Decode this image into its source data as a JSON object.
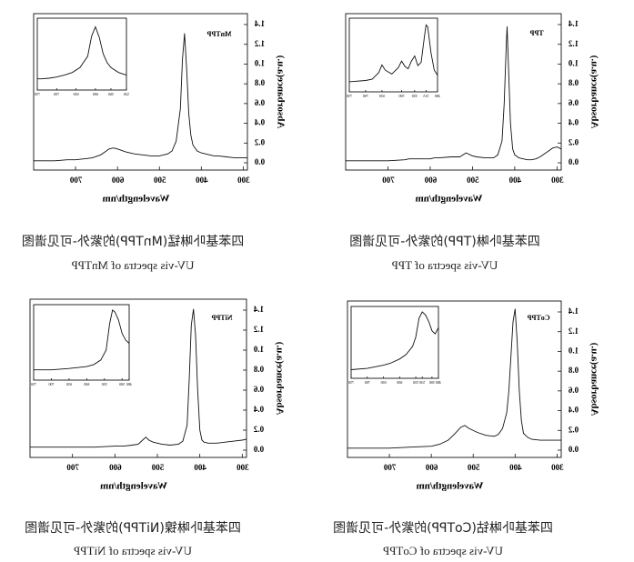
{
  "chart_data": [
    {
      "type": "line",
      "id": "mntpp",
      "label": "MnTPP",
      "xlabel": "Wavelength/nm",
      "ylabel": "Absorbance(a.u.)",
      "xlim": [
        800,
        290
      ],
      "ylim": [
        0.0,
        1.4
      ],
      "x_ticks": [
        "300",
        "400",
        "500",
        "600",
        "700"
      ],
      "y_ticks": [
        "0.0",
        "0.2",
        "0.4",
        "0.6",
        "0.8",
        "1.0",
        "1.2",
        "1.4"
      ],
      "series": [
        {
          "x": [
            290,
            300,
            320,
            340,
            360,
            370,
            380,
            390,
            400,
            410,
            420,
            425,
            430,
            435,
            440,
            445,
            450,
            460,
            470,
            480,
            500,
            520,
            540,
            560,
            580,
            600,
            610,
            620,
            630,
            640,
            660,
            680,
            700,
            720,
            750,
            780,
            800
          ],
          "y": [
            0.05,
            0.05,
            0.05,
            0.06,
            0.07,
            0.07,
            0.08,
            0.09,
            0.1,
            0.12,
            0.18,
            0.28,
            0.5,
            0.95,
            1.31,
            1.05,
            0.55,
            0.22,
            0.12,
            0.09,
            0.07,
            0.07,
            0.08,
            0.09,
            0.11,
            0.14,
            0.15,
            0.14,
            0.11,
            0.08,
            0.05,
            0.04,
            0.03,
            0.03,
            0.02,
            0.02,
            0.02
          ]
        }
      ],
      "inset": {
        "xlim": [
          750,
          520
        ],
        "x_ticks": [
          "520",
          "560",
          "600",
          "650",
          "700",
          "750"
        ],
        "x": [
          520,
          540,
          560,
          570,
          580,
          590,
          600,
          610,
          620,
          640,
          660,
          680,
          700,
          720,
          740,
          750
        ],
        "y": [
          0.18,
          0.22,
          0.3,
          0.38,
          0.52,
          0.78,
          0.95,
          0.8,
          0.48,
          0.3,
          0.22,
          0.18,
          0.15,
          0.13,
          0.12,
          0.12
        ]
      }
    },
    {
      "type": "line",
      "id": "tpp",
      "label": "TPP",
      "xlabel": "Wavelength/nm",
      "ylabel": "Absorbance(a.u.)",
      "xlim": [
        800,
        290
      ],
      "ylim": [
        0.0,
        1.4
      ],
      "x_ticks": [
        "300",
        "400",
        "500",
        "600",
        "700"
      ],
      "y_ticks": [
        "0.0",
        "0.2",
        "0.4",
        "0.6",
        "0.8",
        "1.0",
        "1.2",
        "1.4"
      ],
      "series": [
        {
          "x": [
            290,
            300,
            310,
            320,
            330,
            340,
            350,
            360,
            370,
            380,
            390,
            400,
            405,
            410,
            415,
            418,
            420,
            425,
            430,
            440,
            450,
            470,
            490,
            500,
            515,
            530,
            550,
            580,
            590,
            600,
            620,
            640,
            650,
            660,
            700,
            750,
            800
          ],
          "y": [
            0.14,
            0.16,
            0.15,
            0.12,
            0.09,
            0.06,
            0.04,
            0.03,
            0.03,
            0.04,
            0.05,
            0.08,
            0.14,
            0.4,
            1.0,
            1.38,
            1.2,
            0.6,
            0.22,
            0.08,
            0.05,
            0.05,
            0.06,
            0.07,
            0.1,
            0.06,
            0.06,
            0.05,
            0.05,
            0.04,
            0.04,
            0.04,
            0.04,
            0.03,
            0.02,
            0.02,
            0.02
          ]
        }
      ],
      "inset": {
        "xlim": [
          750,
          480
        ],
        "x_ticks": [
          "480",
          "515",
          "550",
          "590",
          "650",
          "700",
          "750"
        ],
        "x": [
          480,
          490,
          500,
          510,
          515,
          520,
          530,
          540,
          550,
          560,
          570,
          580,
          590,
          600,
          620,
          640,
          650,
          660,
          680,
          700,
          750
        ],
        "y": [
          0.2,
          0.28,
          0.55,
          0.95,
          0.98,
          0.8,
          0.4,
          0.35,
          0.5,
          0.42,
          0.3,
          0.34,
          0.42,
          0.32,
          0.22,
          0.28,
          0.36,
          0.24,
          0.14,
          0.12,
          0.1
        ]
      }
    },
    {
      "type": "line",
      "id": "nitpp",
      "label": "NiTPP",
      "xlabel": "Wavelength/nm",
      "ylabel": "Absorbance(a.u.)",
      "xlim": [
        800,
        290
      ],
      "ylim": [
        0.0,
        1.4
      ],
      "x_ticks": [
        "300",
        "400",
        "500",
        "600",
        "700"
      ],
      "y_ticks": [
        "0.0",
        "0.2",
        "0.4",
        "0.6",
        "0.8",
        "1.0",
        "1.2",
        "1.4"
      ],
      "series": [
        {
          "x": [
            290,
            300,
            320,
            340,
            360,
            380,
            390,
            395,
            400,
            405,
            410,
            415,
            420,
            425,
            430,
            440,
            450,
            470,
            490,
            510,
            520,
            527,
            535,
            545,
            560,
            580,
            600,
            650,
            700,
            750,
            800
          ],
          "y": [
            0.11,
            0.1,
            0.09,
            0.08,
            0.07,
            0.07,
            0.08,
            0.1,
            0.2,
            0.6,
            1.15,
            1.41,
            1.25,
            0.7,
            0.25,
            0.09,
            0.06,
            0.05,
            0.06,
            0.08,
            0.1,
            0.13,
            0.1,
            0.06,
            0.05,
            0.04,
            0.04,
            0.03,
            0.03,
            0.03,
            0.03
          ]
        }
      ],
      "inset": {
        "xlim": [
          750,
          480
        ],
        "x_ticks": [
          "480",
          "500",
          "550",
          "600",
          "650",
          "700",
          "750"
        ],
        "x": [
          480,
          490,
          500,
          510,
          520,
          527,
          535,
          545,
          560,
          580,
          600,
          650,
          700,
          750
        ],
        "y": [
          0.5,
          0.55,
          0.65,
          0.85,
          0.97,
          1.0,
          0.8,
          0.4,
          0.25,
          0.18,
          0.15,
          0.12,
          0.1,
          0.1
        ]
      }
    },
    {
      "type": "line",
      "id": "cotpp",
      "label": "CoTPP",
      "xlabel": "Wavelength/nm",
      "ylabel": "Absorbance(a.u.)",
      "xlim": [
        800,
        290
      ],
      "ylim": [
        0.0,
        1.4
      ],
      "x_ticks": [
        "300",
        "400",
        "500",
        "600",
        "700"
      ],
      "y_ticks": [
        "0.0",
        "0.2",
        "0.4",
        "0.6",
        "0.8",
        "1.0",
        "1.2",
        "1.4"
      ],
      "series": [
        {
          "x": [
            290,
            300,
            320,
            340,
            360,
            370,
            380,
            385,
            390,
            395,
            400,
            405,
            410,
            415,
            420,
            430,
            440,
            450,
            470,
            490,
            510,
            520,
            530,
            545,
            560,
            580,
            600,
            650,
            700,
            750,
            800
          ],
          "y": [
            0.1,
            0.1,
            0.1,
            0.1,
            0.11,
            0.13,
            0.17,
            0.3,
            0.6,
            1.1,
            1.43,
            1.3,
            0.95,
            0.6,
            0.38,
            0.22,
            0.16,
            0.14,
            0.15,
            0.18,
            0.22,
            0.25,
            0.23,
            0.16,
            0.1,
            0.06,
            0.04,
            0.03,
            0.02,
            0.02,
            0.02
          ]
        }
      ],
      "inset": {
        "xlim": [
          750,
          480
        ],
        "x_ticks": [
          "480",
          "500",
          "530",
          "550",
          "600",
          "650",
          "700",
          "750"
        ],
        "x": [
          480,
          490,
          500,
          510,
          520,
          530,
          540,
          550,
          560,
          580,
          600,
          630,
          650,
          700,
          750
        ],
        "y": [
          0.75,
          0.65,
          0.7,
          0.85,
          0.95,
          1.0,
          0.9,
          0.6,
          0.45,
          0.32,
          0.25,
          0.18,
          0.15,
          0.1,
          0.08
        ]
      }
    }
  ],
  "captions": {
    "mntpp": {
      "cn": "四苯基卟啉锰(MnTPP)的紫外-可见谱图",
      "en": "UV-vis spectra of MnTPP"
    },
    "tpp": {
      "cn": "四苯基卟啉(TPP)的紫外-可见谱图",
      "en": "UV-vis spectra of TPP"
    },
    "nitpp": {
      "cn": "四苯基卟啉镍(NiTPP)的紫外-可见谱图",
      "en": "UV-vis spectra of NiTPP"
    },
    "cotpp": {
      "cn": "四苯基卟啉钴(CoTPP)的紫外-可见谱图",
      "en": "UV-vis spectra of CoTPP"
    }
  }
}
